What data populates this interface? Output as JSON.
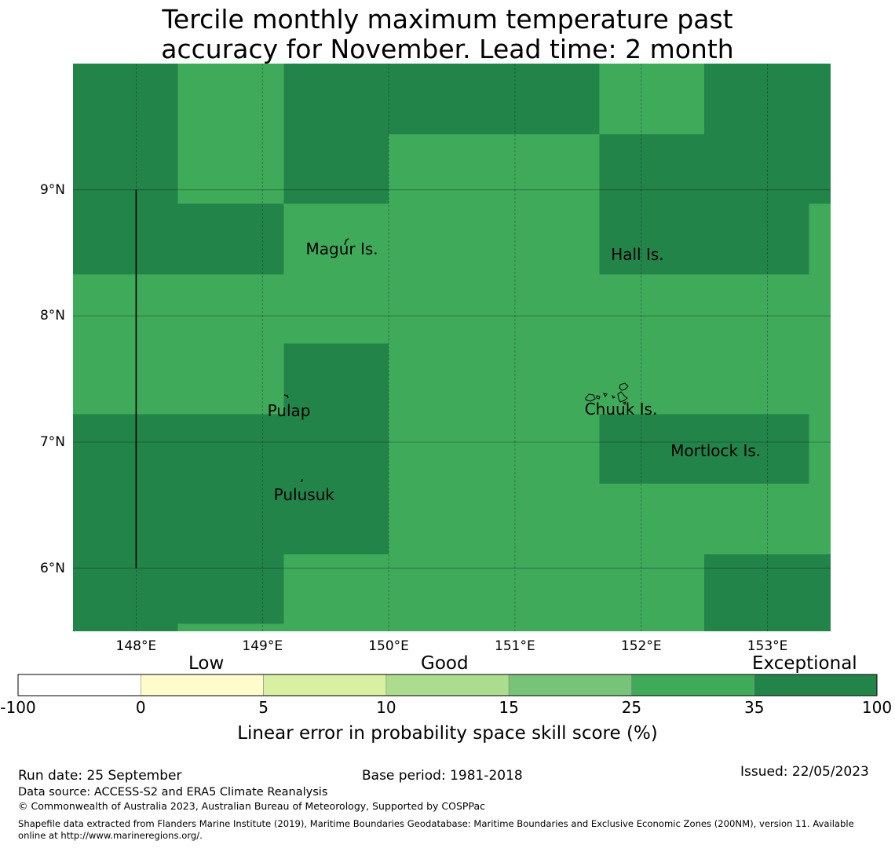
{
  "title": {
    "line1": "Tercile monthly maximum temperature past",
    "line2": "accuracy for November. Lead time: 2 month"
  },
  "map": {
    "lon_range": [
      147.5,
      153.5
    ],
    "lat_range": [
      5.5,
      10.0
    ],
    "lon_ticks": [
      {
        "value": 148,
        "label": "148°E"
      },
      {
        "value": 149,
        "label": "149°E"
      },
      {
        "value": 150,
        "label": "150°E"
      },
      {
        "value": 151,
        "label": "151°E"
      },
      {
        "value": 152,
        "label": "152°E"
      },
      {
        "value": 153,
        "label": "153°E"
      }
    ],
    "lat_ticks": [
      {
        "value": 9,
        "label": "9°N"
      },
      {
        "value": 8,
        "label": "8°N"
      },
      {
        "value": 7,
        "label": "7°N"
      },
      {
        "value": 6,
        "label": "6°N"
      }
    ],
    "categories": {
      "exceptional": {
        "color": "#23844a"
      },
      "good_high": {
        "color": "#40aa5b"
      }
    },
    "cells": [
      {
        "lon": [
          147.5,
          148.33
        ],
        "lat": [
          8.33,
          10.0
        ],
        "category": "exceptional"
      },
      {
        "lon": [
          148.33,
          149.17
        ],
        "lat": [
          8.89,
          10.0
        ],
        "category": "good_high"
      },
      {
        "lon": [
          149.17,
          150.0
        ],
        "lat": [
          8.89,
          10.0
        ],
        "category": "exceptional"
      },
      {
        "lon": [
          150.0,
          151.67
        ],
        "lat": [
          9.44,
          10.0
        ],
        "category": "exceptional"
      },
      {
        "lon": [
          150.0,
          151.67
        ],
        "lat": [
          8.33,
          9.44
        ],
        "category": "good_high"
      },
      {
        "lon": [
          151.67,
          152.5
        ],
        "lat": [
          9.44,
          10.0
        ],
        "category": "good_high"
      },
      {
        "lon": [
          152.5,
          153.5
        ],
        "lat": [
          9.44,
          10.0
        ],
        "category": "exceptional"
      },
      {
        "lon": [
          151.67,
          153.5
        ],
        "lat": [
          8.89,
          9.44
        ],
        "category": "exceptional"
      },
      {
        "lon": [
          151.67,
          153.33
        ],
        "lat": [
          8.33,
          8.89
        ],
        "category": "exceptional"
      },
      {
        "lon": [
          153.33,
          153.5
        ],
        "lat": [
          8.33,
          8.89
        ],
        "category": "good_high"
      },
      {
        "lon": [
          148.33,
          149.17
        ],
        "lat": [
          8.33,
          8.89
        ],
        "category": "exceptional"
      },
      {
        "lon": [
          149.17,
          150.0
        ],
        "lat": [
          8.33,
          8.89
        ],
        "category": "good_high"
      },
      {
        "lon": [
          147.5,
          153.5
        ],
        "lat": [
          7.22,
          8.33
        ],
        "category": "good_high"
      },
      {
        "lon": [
          149.17,
          150.0
        ],
        "lat": [
          6.11,
          7.78
        ],
        "category": "exceptional"
      },
      {
        "lon": [
          147.5,
          149.17
        ],
        "lat": [
          6.11,
          7.22
        ],
        "category": "exceptional"
      },
      {
        "lon": [
          150.0,
          151.67
        ],
        "lat": [
          5.5,
          7.22
        ],
        "category": "good_high"
      },
      {
        "lon": [
          151.67,
          153.33
        ],
        "lat": [
          6.67,
          7.22
        ],
        "category": "exceptional"
      },
      {
        "lon": [
          153.33,
          153.5
        ],
        "lat": [
          6.67,
          7.22
        ],
        "category": "good_high"
      },
      {
        "lon": [
          151.67,
          153.5
        ],
        "lat": [
          6.11,
          6.67
        ],
        "category": "good_high"
      },
      {
        "lon": [
          147.5,
          148.33
        ],
        "lat": [
          5.5,
          6.11
        ],
        "category": "exceptional"
      },
      {
        "lon": [
          148.33,
          149.17
        ],
        "lat": [
          5.56,
          6.11
        ],
        "category": "exceptional"
      },
      {
        "lon": [
          148.33,
          149.17
        ],
        "lat": [
          5.5,
          5.56
        ],
        "category": "good_high"
      },
      {
        "lon": [
          149.17,
          150.0
        ],
        "lat": [
          5.5,
          6.11
        ],
        "category": "good_high"
      },
      {
        "lon": [
          151.67,
          152.5
        ],
        "lat": [
          5.5,
          6.11
        ],
        "category": "good_high"
      },
      {
        "lon": [
          152.5,
          153.5
        ],
        "lat": [
          5.5,
          6.11
        ],
        "category": "exceptional"
      }
    ],
    "boundary_line": {
      "lon": 148.0,
      "lat": [
        6.0,
        9.0
      ]
    },
    "places": [
      {
        "name": "Magur Is.",
        "lon": 149.63,
        "lat": 8.53
      },
      {
        "name": "Hall Is.",
        "lon": 151.97,
        "lat": 8.49
      },
      {
        "name": "Pulap",
        "lon": 149.21,
        "lat": 7.25
      },
      {
        "name": "Chuuk Is.",
        "lon": 151.84,
        "lat": 7.26
      },
      {
        "name": "Mortlock Is.",
        "lon": 152.59,
        "lat": 6.93
      },
      {
        "name": "Pulusuk",
        "lon": 149.33,
        "lat": 6.58
      }
    ]
  },
  "legend": {
    "category_labels": {
      "low": "Low",
      "good": "Good",
      "exceptional": "Exceptional"
    },
    "bins": [
      {
        "color": "#ffffff"
      },
      {
        "color": "#fefccb"
      },
      {
        "color": "#d9f0a2"
      },
      {
        "color": "#acdd8e"
      },
      {
        "color": "#77c478"
      },
      {
        "color": "#40aa5b"
      },
      {
        "color": "#23844a"
      }
    ],
    "ticks": [
      "-100",
      "0",
      "5",
      "10",
      "15",
      "25",
      "35",
      "100"
    ],
    "title": "Linear error in probability space skill score (%)"
  },
  "footer": {
    "run_date": "Run date: 25 September",
    "base_period": "Base period: 1981-2018",
    "issued": "Issued: 22/05/2023",
    "data_source": "Data source: ACCESS-S2 and ERA5 Climate Reanalysis",
    "copyright": "© Commonwealth of Australia 2023, Australian Bureau of Meteorology, Supported by COSPPac",
    "shapefile_line1": "Shapefile data extracted from Flanders Marine Institute (2019), Maritime Boundaries Geodatabase: Maritime Boundaries and Exclusive Economic Zones (200NM), version 11. Available",
    "shapefile_line2": "online at http://www.marineregions.org/."
  }
}
